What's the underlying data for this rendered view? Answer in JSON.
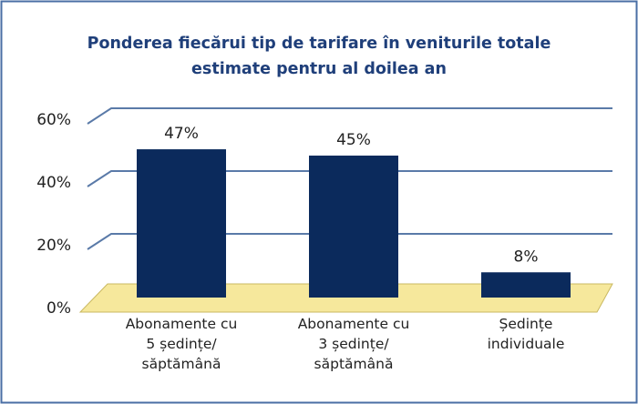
{
  "chart_data": {
    "type": "bar",
    "title": "Ponderea fiecărui tip de tarifare în veniturile totale estimate pentru al doilea an",
    "categories": [
      "Abonamente cu 5 ședințe/ săptămână",
      "Abonamente cu 3 ședințe/ săptămână",
      "Ședințe individuale"
    ],
    "values": [
      47,
      45,
      8
    ],
    "value_labels": [
      "47%",
      "45%",
      "8%"
    ],
    "color": "#0b2a5c",
    "ylim": [
      0,
      60
    ],
    "yticks": [
      {
        "value": 0,
        "label": "0%"
      },
      {
        "value": 20,
        "label": "20%"
      },
      {
        "value": 40,
        "label": "40%"
      },
      {
        "value": 60,
        "label": "60%"
      }
    ],
    "grid": true
  }
}
